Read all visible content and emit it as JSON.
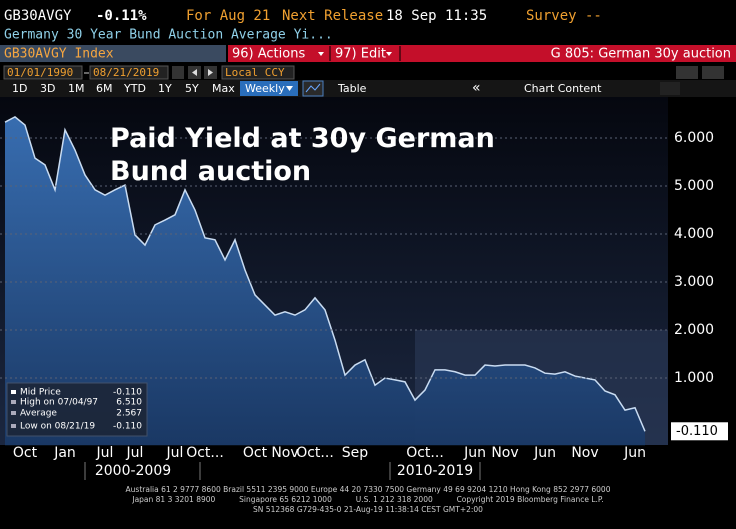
{
  "header": {
    "ticker": "GB30AVGY",
    "change": "-0.11%",
    "for_date": "For Aug 21",
    "next_release_label": "Next Release",
    "next_release": "18 Sep 11:35",
    "survey": "Survey --",
    "description": "Germany 30 Year Bund Auction Average Yi..."
  },
  "toolbar": {
    "security": "GB30AVGY Index",
    "actions": "96) Actions",
    "edit": "97) Edit",
    "page": "G 805: German 30y auction",
    "start_date": "01/01/1990",
    "end_date": "08/21/2019",
    "currency": "Local CCY",
    "ranges": [
      "1D",
      "3D",
      "1M",
      "6M",
      "YTD",
      "1Y",
      "5Y",
      "Max"
    ],
    "frequency": "Weekly",
    "table": "Table",
    "collapse": "«",
    "chart_content": "Chart Content"
  },
  "chart_data": {
    "type": "area",
    "title": "Paid Yield at 30y German\nBund auction",
    "categories": [
      null,
      null,
      "Oct",
      null,
      null,
      null,
      "Jan",
      null,
      null,
      null,
      "Jul",
      null,
      null,
      "Jul",
      null,
      null,
      null,
      "Jul",
      null,
      null,
      "Oct...",
      null,
      null,
      null,
      null,
      "Oct",
      null,
      null,
      "Nov",
      null,
      null,
      "Oct...",
      null,
      null,
      null,
      "Sep",
      null,
      null,
      null,
      null,
      null,
      null,
      "Oct...",
      null,
      null,
      null,
      null,
      "Jun",
      null,
      null,
      "Nov",
      null,
      null,
      null,
      "Jun",
      null,
      null,
      null,
      "Nov",
      null,
      null,
      null,
      null,
      "Jun",
      null
    ],
    "values": [
      6.33,
      6.44,
      6.27,
      5.58,
      5.44,
      4.92,
      6.17,
      5.75,
      5.23,
      4.92,
      4.81,
      4.92,
      5.02,
      3.98,
      3.77,
      4.19,
      4.29,
      4.4,
      4.92,
      4.5,
      3.92,
      3.88,
      3.46,
      3.88,
      3.25,
      2.73,
      2.52,
      2.31,
      2.38,
      2.31,
      2.42,
      2.67,
      2.42,
      1.79,
      1.06,
      1.27,
      1.38,
      0.85,
      1.0,
      0.96,
      0.92,
      0.54,
      0.75,
      1.17,
      1.17,
      1.13,
      1.06,
      1.06,
      1.27,
      1.25,
      1.27,
      1.27,
      1.27,
      1.21,
      1.1,
      1.08,
      1.13,
      1.04,
      1.0,
      0.96,
      0.73,
      0.65,
      0.33,
      0.38,
      -0.11
    ],
    "periods": [
      "2000-2009",
      "2010-2019"
    ],
    "ylim": [
      -0.4,
      6.85
    ],
    "yticks": [
      {
        "value": 1,
        "label": "1.000"
      },
      {
        "value": 2,
        "label": "2.000"
      },
      {
        "value": 3,
        "label": "3.000"
      },
      {
        "value": 4,
        "label": "4.000"
      },
      {
        "value": 5,
        "label": "5.000"
      },
      {
        "value": 6,
        "label": "6.000"
      }
    ],
    "grid": true,
    "color": "#2f64a8",
    "line_color": "#c9dcf2",
    "last_value_label": "-0.110",
    "stats": [
      {
        "label": "Mid Price",
        "value": "-0.110"
      },
      {
        "label": "High on 07/04/97",
        "value": "6.510"
      },
      {
        "label": "Average",
        "value": "2.567"
      },
      {
        "label": "Low on 08/21/19",
        "value": "-0.110"
      }
    ]
  },
  "footer": [
    "Australia 61 2 9777 8600 Brazil 5511 2395 9000 Europe 44 20 7330 7500 Germany 49 69 9204 1210 Hong Kong 852 2977 6000",
    "Japan 81 3 3201 8900          Singapore 65 6212 1000          U.S. 1 212 318 2000          Copyright 2019 Bloomberg Finance L.P.",
    "SN 512368 G729-435-0 21-Aug-19 11:38:14 CEST GMT+2:00"
  ]
}
